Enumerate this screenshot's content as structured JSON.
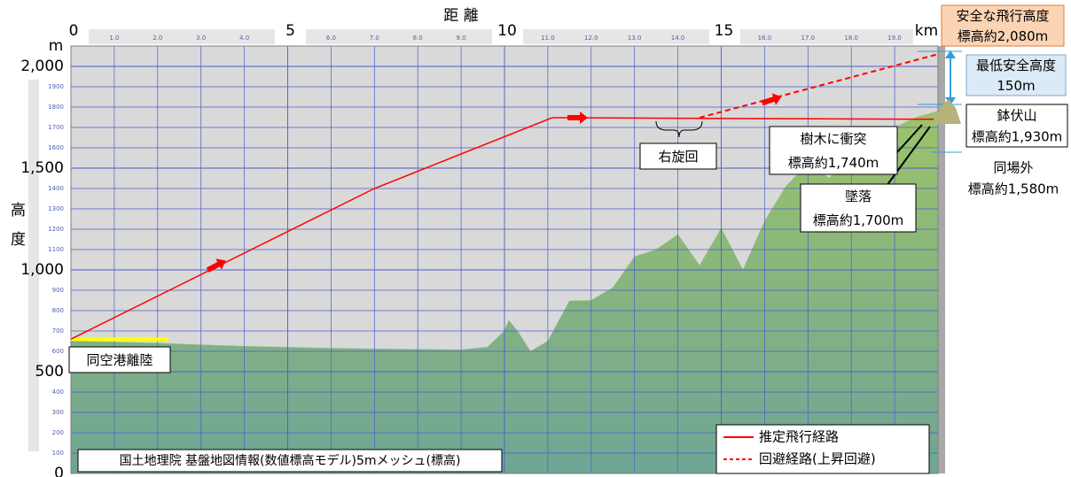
{
  "chart_data": {
    "type": "profile",
    "title": "距 離",
    "x_unit": "km",
    "y_unit": "m",
    "y_label": "高度",
    "xlim": [
      0,
      20
    ],
    "ylim": [
      0,
      2100
    ],
    "xticks": [
      0,
      5,
      10,
      15
    ],
    "xticks_minor": [
      {
        "value": 1,
        "label": "1.0"
      },
      {
        "value": 2,
        "label": "2.0"
      },
      {
        "value": 3,
        "label": "3.0"
      },
      {
        "value": 4,
        "label": "4.0"
      },
      {
        "value": 6,
        "label": "6.0"
      },
      {
        "value": 7,
        "label": "7.0"
      },
      {
        "value": 8,
        "label": "8.0"
      },
      {
        "value": 9,
        "label": "9.0"
      },
      {
        "value": 11,
        "label": "11.0"
      },
      {
        "value": 12,
        "label": "12.0"
      },
      {
        "value": 13,
        "label": "13.0"
      },
      {
        "value": 14,
        "label": "14.0"
      },
      {
        "value": 16,
        "label": "16.0"
      },
      {
        "value": 17,
        "label": "17.0"
      },
      {
        "value": 18,
        "label": "18.0"
      },
      {
        "value": 19,
        "label": "19.0"
      }
    ],
    "yticks": [
      0,
      500,
      {
        "value": 1000,
        "label": "1,000"
      },
      {
        "value": 1500,
        "label": "1,500"
      },
      {
        "value": 2000,
        "label": "2,000"
      }
    ],
    "yticks_minor": [
      100,
      200,
      300,
      400,
      600,
      700,
      800,
      900,
      1100,
      1200,
      1300,
      1400,
      1600,
      1700,
      1800,
      1900
    ],
    "grid": true,
    "series": [
      {
        "style": "area",
        "color": "#8fbf6e",
        "x": [
          0,
          1,
          2,
          3,
          4,
          5,
          6,
          7,
          8,
          9,
          9.6,
          10,
          10.1,
          10.3,
          10.6,
          11,
          11.5,
          12,
          12.5,
          13,
          13.5,
          14,
          14.5,
          15,
          15.5,
          16,
          16.5,
          17,
          17.5,
          18,
          18.5,
          19,
          19.5,
          20
        ],
        "values": [
          650,
          645,
          640,
          632,
          625,
          620,
          615,
          612,
          610,
          608,
          620,
          700,
          752,
          700,
          600,
          650,
          848,
          850,
          913,
          1065,
          1100,
          1174,
          1022,
          1204,
          1000,
          1239,
          1413,
          1522,
          1450,
          1630,
          1620,
          1700,
          1750,
          1780
        ]
      },
      {
        "name": "推定飛行経路",
        "style": "solid",
        "color": "#ff0000",
        "x": [
          0,
          7,
          11.1,
          20
        ],
        "values": [
          660,
          1400,
          1748,
          1740
        ]
      },
      {
        "name": "回避経路(上昇回避)",
        "style": "dashed",
        "color": "#ff0000",
        "x": [
          14.5,
          20
        ],
        "values": [
          1748,
          2060
        ]
      }
    ],
    "annotations": [
      {
        "lines": [
          "安全な飛行高度",
          "標高約2,080m"
        ]
      },
      {
        "lines": [
          "最低安全高度",
          "150m"
        ]
      },
      {
        "lines": [
          "鉢伏山",
          "標高約1,930m"
        ]
      },
      {
        "lines": [
          "同場外",
          "標高約1,580m"
        ]
      },
      {
        "lines": [
          "樹木に衝突",
          "標高約1,740m"
        ]
      },
      {
        "lines": [
          "墜落",
          "標高約1,700m"
        ]
      },
      {
        "lines": [
          "右旋回"
        ]
      },
      {
        "lines": [
          "同空港離陸"
        ]
      }
    ],
    "source": "国土地理院 基盤地図情報(数値標高モデル)5mメッシュ(標高)"
  }
}
